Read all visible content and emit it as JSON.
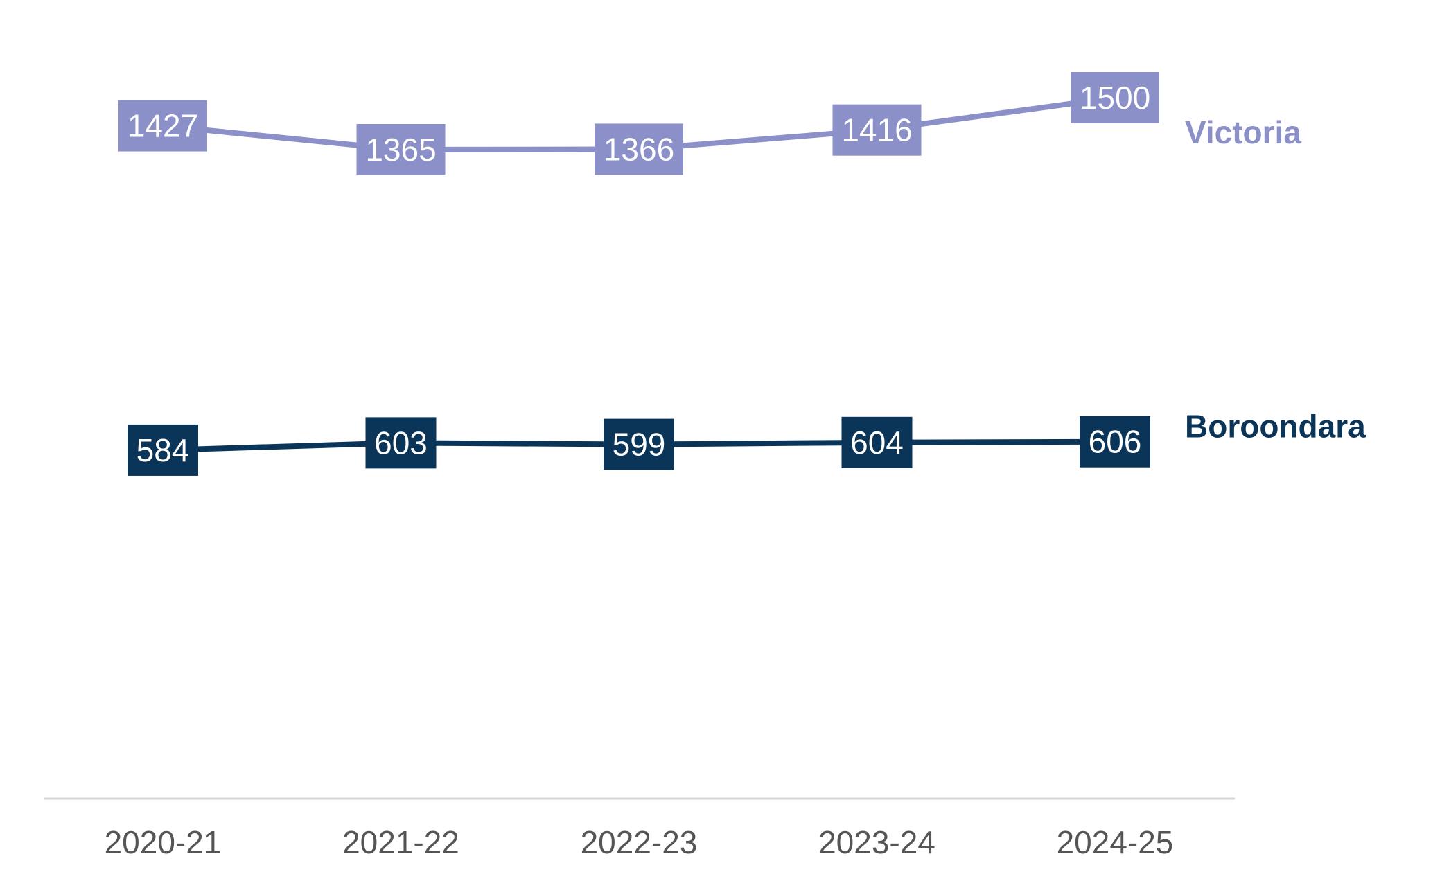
{
  "chart_data": {
    "type": "line",
    "title": "",
    "xlabel": "",
    "ylabel": "",
    "categories": [
      "2020-21",
      "2021-22",
      "2022-23",
      "2023-24",
      "2024-25"
    ],
    "series": [
      {
        "name": "Victoria",
        "values": [
          1427,
          1365,
          1366,
          1416,
          1500
        ],
        "color": "#8b90c8",
        "label_color": "#8b90c8"
      },
      {
        "name": "Boroondara",
        "values": [
          584,
          603,
          599,
          604,
          606
        ],
        "color": "#0b3558",
        "label_color": "#0b3558"
      }
    ],
    "grid": false,
    "legend": "inline-right",
    "data_labels": true
  }
}
